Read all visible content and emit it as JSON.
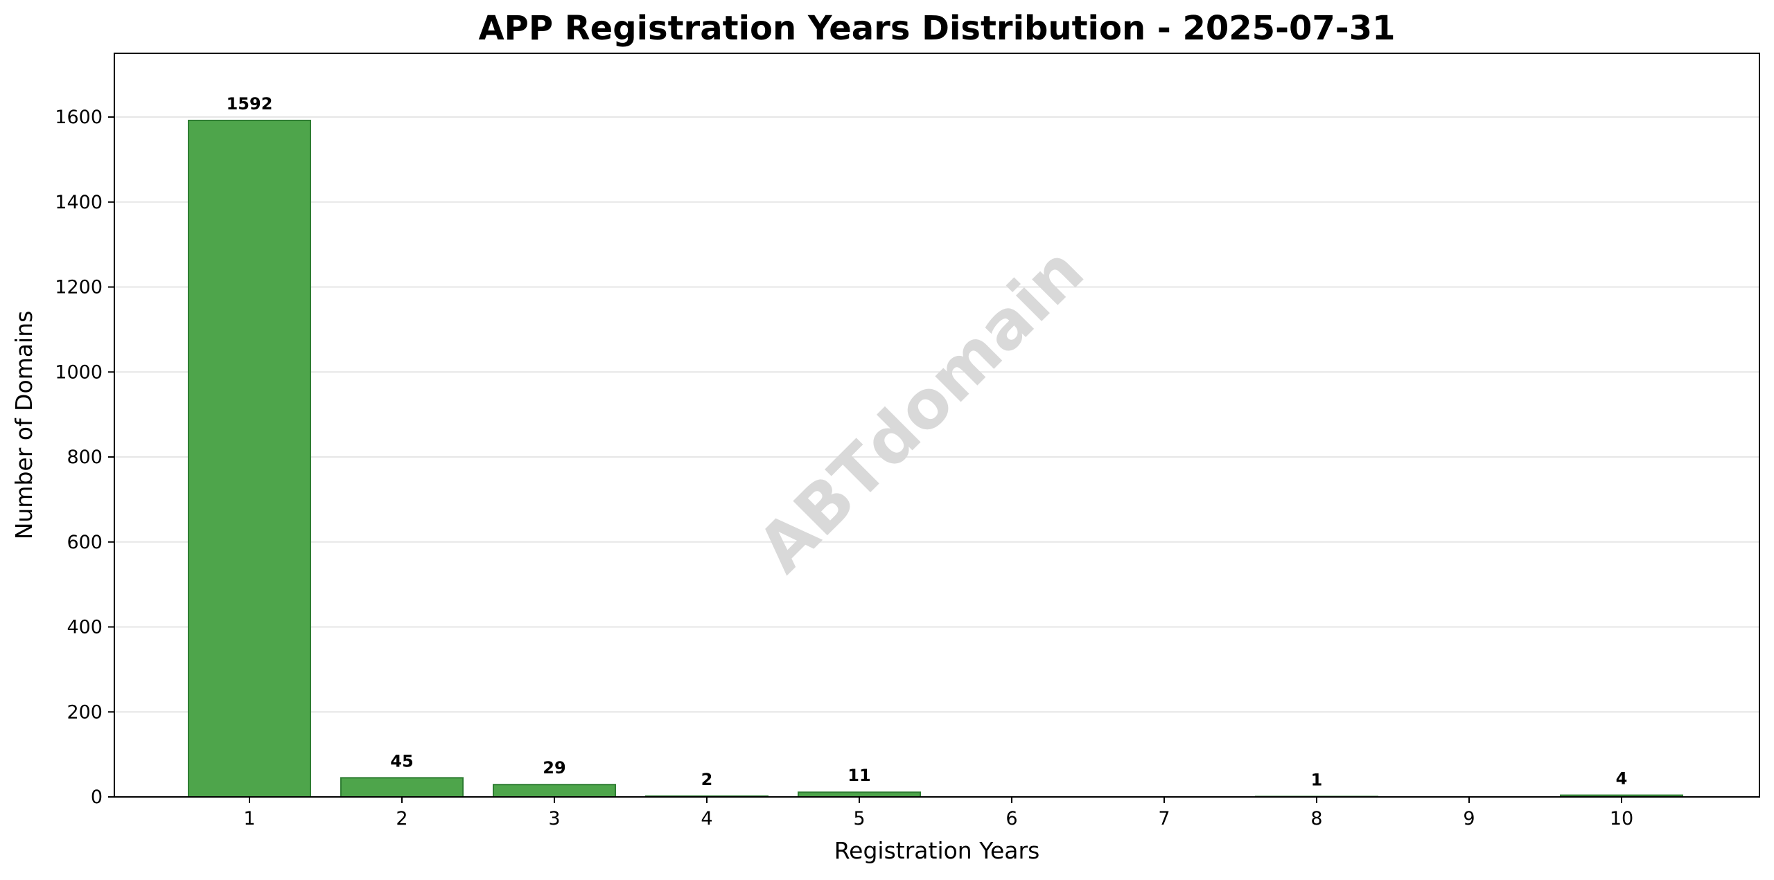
{
  "colors": {
    "bar_fill": "#4ea54b",
    "bar_edge": "#2e7d32",
    "grid": "#e6e6e6",
    "watermark": "#d9d9d9"
  },
  "watermark": "ABTdomain",
  "chart_data": {
    "type": "bar",
    "title": "APP Registration Years Distribution - 2025-07-31",
    "xlabel": "Registration Years",
    "ylabel": "Number of Domains",
    "categories": [
      "1",
      "2",
      "3",
      "4",
      "5",
      "6",
      "7",
      "8",
      "9",
      "10"
    ],
    "values": [
      1592,
      45,
      29,
      2,
      11,
      0,
      0,
      1,
      0,
      4
    ],
    "data_labels": [
      "1592",
      "45",
      "29",
      "2",
      "11",
      "",
      "",
      "1",
      "",
      "4"
    ],
    "ylim": [
      0,
      1750
    ],
    "yticks": [
      0,
      200,
      400,
      600,
      800,
      1000,
      1200,
      1400,
      1600
    ],
    "grid": "y",
    "legend": "none"
  }
}
